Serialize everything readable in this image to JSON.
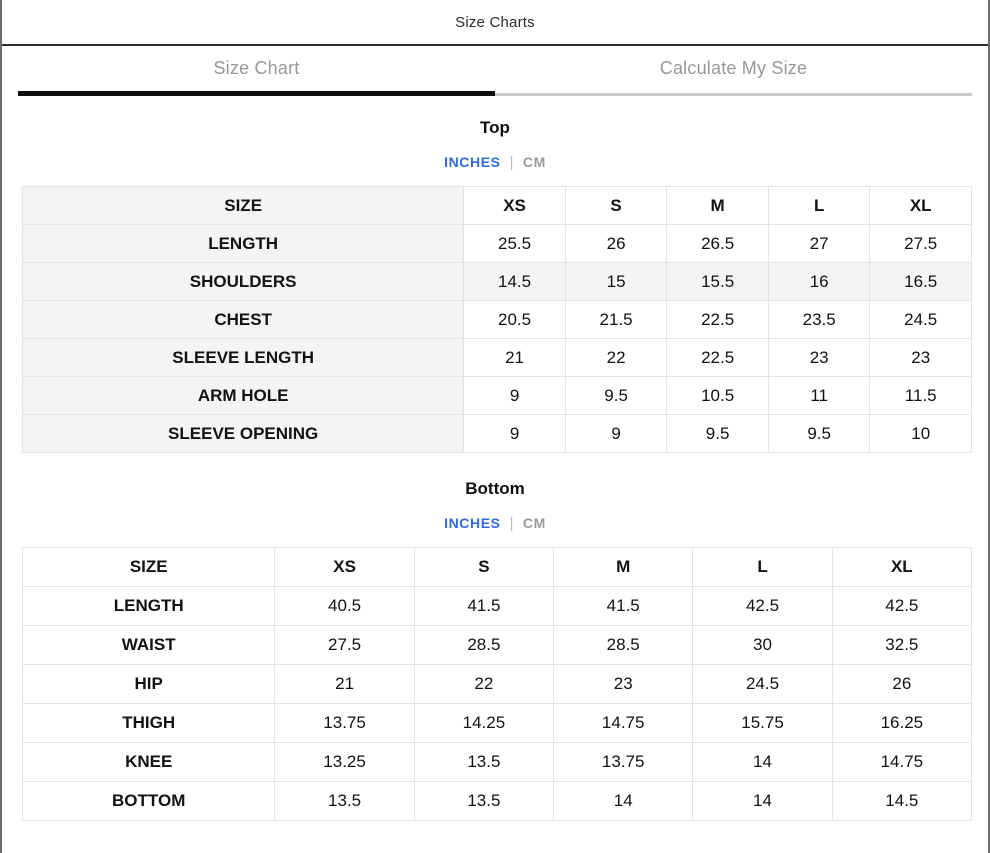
{
  "modal": {
    "title": "Size Charts",
    "close_label": "✕"
  },
  "tabs": {
    "size_chart": "Size Chart",
    "calculate_my_size": "Calculate My Size"
  },
  "units": {
    "inches": "INCHES",
    "cm": "CM",
    "divider": "|",
    "selected": "INCHES"
  },
  "colors": {
    "accent_blue": "#2c6be0",
    "tab_text_gray": "#979797",
    "active_underline": "#0e0e0e",
    "inactive_underline": "#cbcbcb",
    "stripe_gray": "#f4f4f5",
    "table_border": "#e4e4e4"
  },
  "sections": [
    {
      "heading": "Top",
      "table": {
        "header": [
          "SIZE",
          "XS",
          "S",
          "M",
          "L",
          "XL"
        ],
        "rows": [
          {
            "label": "LENGTH",
            "values": [
              "25.5",
              "26",
              "26.5",
              "27",
              "27.5"
            ],
            "shaded": false
          },
          {
            "label": "SHOULDERS",
            "values": [
              "14.5",
              "15",
              "15.5",
              "16",
              "16.5"
            ],
            "shaded": true
          },
          {
            "label": "CHEST",
            "values": [
              "20.5",
              "21.5",
              "22.5",
              "23.5",
              "24.5"
            ],
            "shaded": false
          },
          {
            "label": "SLEEVE LENGTH",
            "values": [
              "21",
              "22",
              "22.5",
              "23",
              "23"
            ],
            "shaded": false
          },
          {
            "label": "ARM HOLE",
            "values": [
              "9",
              "9.5",
              "10.5",
              "11",
              "11.5"
            ],
            "shaded": false
          },
          {
            "label": "SLEEVE OPENING",
            "values": [
              "9",
              "9",
              "9.5",
              "9.5",
              "10"
            ],
            "shaded": false
          }
        ]
      }
    },
    {
      "heading": "Bottom",
      "table": {
        "header": [
          "SIZE",
          "XS",
          "S",
          "M",
          "L",
          "XL"
        ],
        "rows": [
          {
            "label": "LENGTH",
            "values": [
              "40.5",
              "41.5",
              "41.5",
              "42.5",
              "42.5"
            ],
            "shaded": false
          },
          {
            "label": "WAIST",
            "values": [
              "27.5",
              "28.5",
              "28.5",
              "30",
              "32.5"
            ],
            "shaded": false
          },
          {
            "label": "HIP",
            "values": [
              "21",
              "22",
              "23",
              "24.5",
              "26"
            ],
            "shaded": false
          },
          {
            "label": "THIGH",
            "values": [
              "13.75",
              "14.25",
              "14.75",
              "15.75",
              "16.25"
            ],
            "shaded": false
          },
          {
            "label": "KNEE",
            "values": [
              "13.25",
              "13.5",
              "13.75",
              "14",
              "14.75"
            ],
            "shaded": false
          },
          {
            "label": "BOTTOM",
            "values": [
              "13.5",
              "13.5",
              "14",
              "14",
              "14.5"
            ],
            "shaded": false
          }
        ]
      }
    }
  ]
}
